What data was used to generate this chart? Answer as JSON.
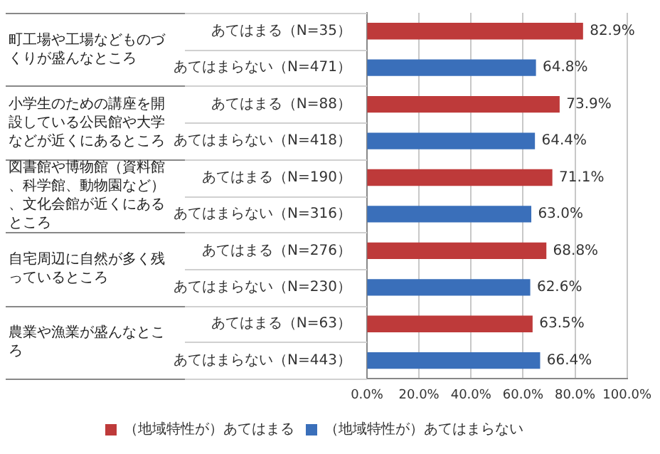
{
  "chart_data": {
    "type": "bar",
    "orientation": "horizontal",
    "categories": [
      "あてはまる（N=35）",
      "あてはまらない（N=471）",
      "あてはまる（N=88）",
      "あてはまらない（N=418）",
      "あてはまる（N=190）",
      "あてはまらない（N=316）",
      "あてはまる（N=276）",
      "あてはまらない（N=230）",
      "あてはまる（N=63）",
      "あてはまらない（N=443）"
    ],
    "series": [
      {
        "name": "（地域特性が）あてはまる",
        "color": "#be3a3a",
        "values": [
          82.9,
          null,
          73.9,
          null,
          71.1,
          null,
          68.8,
          null,
          63.5,
          null
        ],
        "value_labels": [
          "82.9%",
          null,
          "73.9%",
          null,
          "71.1%",
          null,
          "68.8%",
          null,
          "63.5%",
          null
        ]
      },
      {
        "name": "（地域特性が）あてはまらない",
        "color": "#3a6fba",
        "values": [
          null,
          64.8,
          null,
          64.4,
          null,
          63.0,
          null,
          62.6,
          null,
          66.4
        ],
        "value_labels": [
          null,
          "64.8%",
          null,
          "64.4%",
          null,
          "63.0%",
          null,
          "62.6%",
          null,
          "66.4%"
        ]
      }
    ],
    "annotations": [
      "町工場や工場などものづくりが盛んなところ",
      "小学生のための講座を開設している公民館や大学などが近くにあるところ",
      "図書館や博物館（資料館、科学館、動物園など）、文化会館が近くにあるところ",
      "自宅周辺に自然が多く残っているところ",
      "農業や漁業が盛んなところ"
    ],
    "xlim": [
      0,
      100
    ],
    "xticks": [
      {
        "value": 0,
        "label": "0.0%"
      },
      {
        "value": 20,
        "label": "20.0%"
      },
      {
        "value": 40,
        "label": "40.0%"
      },
      {
        "value": 60,
        "label": "60.0%"
      },
      {
        "value": 80,
        "label": "80.0%"
      },
      {
        "value": 100,
        "label": "100.0%"
      }
    ],
    "grid": "x",
    "legend": "bottom"
  }
}
